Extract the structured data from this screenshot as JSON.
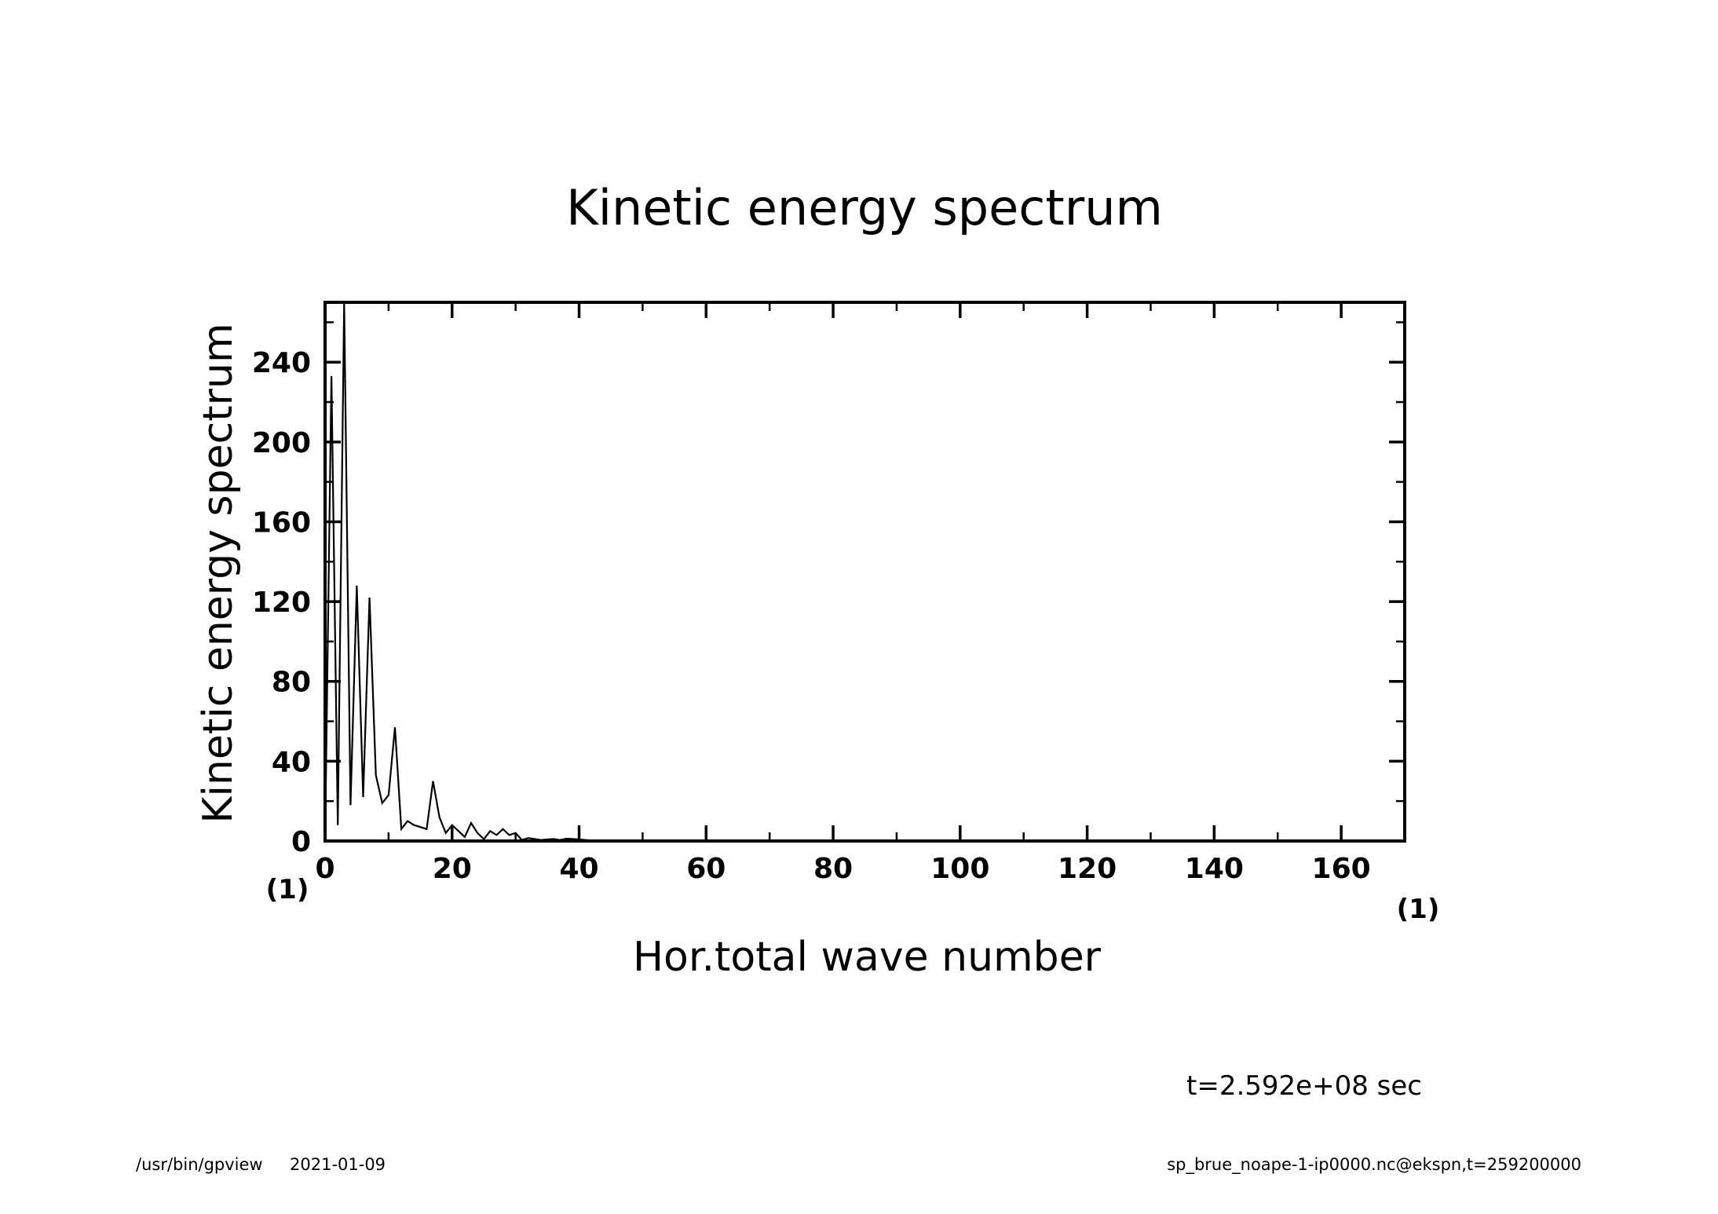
{
  "footer": {
    "program": "/usr/bin/gpview",
    "date": "2021-01-09",
    "source": "sp_brue_noape-1-ip0000.nc@ekspn,t=259200000"
  },
  "annotation": {
    "time": "t=2.592e+08 sec"
  },
  "chart_data": {
    "type": "line",
    "title": "Kinetic energy spectrum",
    "xlabel": "Hor.total wave number",
    "ylabel": "Kinetic energy spectrum",
    "x_unit_label": "(1)",
    "y_unit_label": "(1)",
    "xlim": [
      0,
      170
    ],
    "ylim": [
      0,
      270
    ],
    "x_ticks": [
      0,
      20,
      40,
      60,
      80,
      100,
      120,
      140,
      160
    ],
    "y_ticks": [
      0,
      40,
      80,
      120,
      160,
      200,
      240
    ],
    "x_tick_labels": [
      "0",
      "20",
      "40",
      "60",
      "80",
      "100",
      "120",
      "140",
      "160"
    ],
    "y_tick_labels": [
      "0",
      "40",
      "80",
      "120",
      "160",
      "200",
      "240"
    ],
    "x_minor_step": 10,
    "y_minor_step": 20,
    "grid": false,
    "line_color": "#000000",
    "series": [
      {
        "x": [
          0,
          1,
          2,
          3,
          4,
          5,
          6,
          7,
          8,
          9,
          10,
          11,
          12,
          13,
          14,
          15,
          16,
          17,
          18,
          19,
          20,
          21,
          22,
          23,
          24,
          25,
          26,
          27,
          28,
          29,
          30,
          31,
          32,
          33,
          34,
          35,
          36,
          37,
          38,
          39,
          40,
          41,
          42,
          43,
          44,
          45,
          46,
          47,
          48,
          49,
          50,
          60,
          70,
          80,
          100,
          120,
          140,
          160,
          170
        ],
        "y": [
          0,
          233,
          8,
          270,
          18,
          128,
          22,
          122,
          33,
          19,
          23,
          57,
          6,
          10,
          8,
          7,
          6,
          30,
          12,
          4,
          8,
          5,
          2,
          9,
          4,
          1,
          5,
          3,
          6,
          3,
          4,
          0.5,
          1.5,
          1,
          0.5,
          0.8,
          1,
          0.5,
          1.2,
          1,
          0.8,
          0.5,
          0.3,
          0.2,
          0.2,
          0.1,
          0.2,
          0.3,
          0.1,
          0.1,
          0.05,
          0.02,
          0.01,
          0,
          0,
          0,
          0,
          0,
          0
        ]
      }
    ]
  }
}
